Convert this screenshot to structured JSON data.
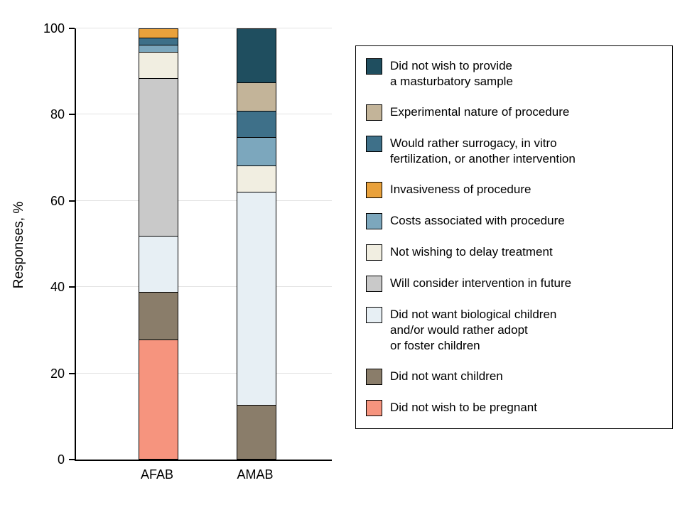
{
  "chart_data": {
    "type": "bar",
    "variant": "stacked-percent",
    "title": "",
    "xlabel": "",
    "ylabel": "Responses, %",
    "ylim": [
      0,
      100
    ],
    "yticks": [
      0,
      20,
      40,
      60,
      80,
      100
    ],
    "grid": true,
    "legend_position": "right",
    "categories": [
      "AFAB",
      "AMAB"
    ],
    "series": [
      {
        "name": "Did not wish to be pregnant",
        "color": "#F6947E",
        "values": [
          28,
          0
        ]
      },
      {
        "name": "Did not want children",
        "color": "#8A7D6A",
        "values": [
          11,
          12.5
        ]
      },
      {
        "name": "Did not want biological children and/or would rather adopt or foster children",
        "color": "#E7EFF4",
        "values": [
          13,
          50
        ]
      },
      {
        "name": "Will consider intervention in future",
        "color": "#C9C9C9",
        "values": [
          37,
          0
        ]
      },
      {
        "name": "Not wishing to delay treatment",
        "color": "#F1EEE1",
        "values": [
          6,
          6
        ]
      },
      {
        "name": "Costs associated with procedure",
        "color": "#7CA7BD",
        "values": [
          1.5,
          6.5
        ]
      },
      {
        "name": "Would rather surrogacy, in vitro fertilization, or another intervention",
        "color": "#3E7089",
        "values": [
          1.5,
          6
        ]
      },
      {
        "name": "Invasiveness of procedure",
        "color": "#E9A13B",
        "values": [
          2,
          0
        ]
      },
      {
        "name": "Experimental nature of procedure",
        "color": "#C3B499",
        "values": [
          0,
          6.5
        ]
      },
      {
        "name": "Did not wish to provide a masturbatory sample",
        "color": "#1F4E5F",
        "values": [
          0,
          12.5
        ]
      }
    ]
  },
  "legend": {
    "items": [
      {
        "label": "Did not wish to provide\na masturbatory sample",
        "color": "#1F4E5F"
      },
      {
        "label": "Experimental nature of procedure",
        "color": "#C3B499"
      },
      {
        "label": "Would rather surrogacy, in vitro\nfertilization, or another intervention",
        "color": "#3E7089"
      },
      {
        "label": "Invasiveness of procedure",
        "color": "#E9A13B"
      },
      {
        "label": "Costs associated with procedure",
        "color": "#7CA7BD"
      },
      {
        "label": "Not wishing to delay treatment",
        "color": "#F1EEE1"
      },
      {
        "label": "Will consider intervention in future",
        "color": "#C9C9C9"
      },
      {
        "label": "Did not want biological children\nand/or would rather adopt\nor foster children",
        "color": "#E7EFF4"
      },
      {
        "label": "Did not want children",
        "color": "#8A7D6A"
      },
      {
        "label": "Did not wish to be pregnant",
        "color": "#F6947E"
      }
    ]
  }
}
